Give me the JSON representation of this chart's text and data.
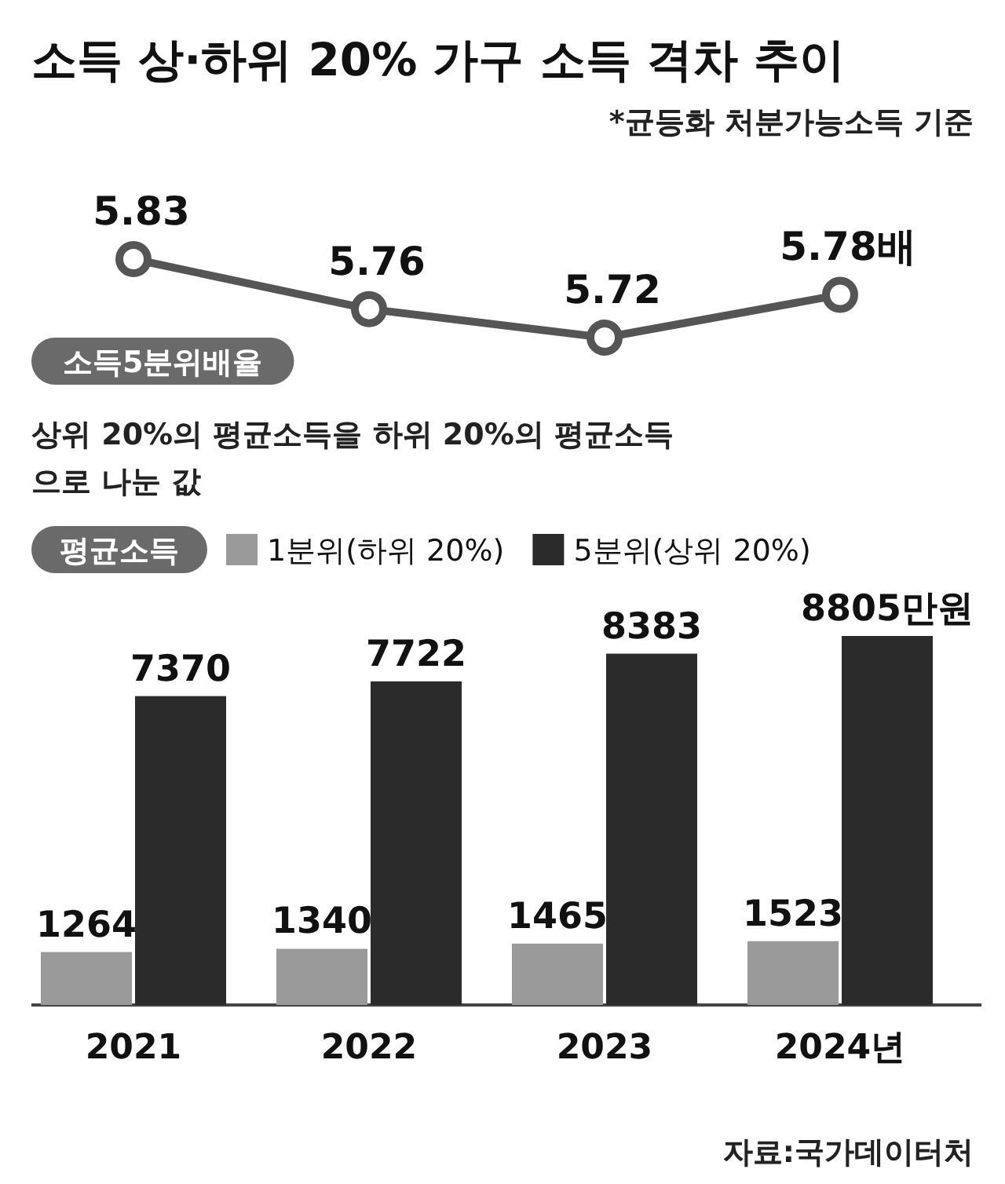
{
  "chart_data": [
    {
      "type": "line",
      "title": "소득 상·하위 20% 가구 소득 격차 추이",
      "subtitle": "*균등화 처분가능소득 기준",
      "series": [
        {
          "name": "소득5분위배율",
          "color": "#555555",
          "values": [
            5.83,
            5.76,
            5.72,
            5.78
          ],
          "value_labels": [
            "5.83",
            "5.76",
            "5.72",
            "5.78배"
          ]
        }
      ],
      "marker": "circle",
      "annotations": [
        "상위 20%의 평균소득을 하위 20%의 평균소득으로 나눈 값"
      ]
    },
    {
      "type": "bar",
      "categories": [
        "2021",
        "2022",
        "2023",
        "2024년"
      ],
      "legend_title": "평균소득",
      "legend": "top",
      "series": [
        {
          "name": "1분위(하위 20%)",
          "color": "#9a9a9a",
          "values": [
            1264,
            1340,
            1465,
            1523
          ],
          "value_labels": [
            "1264",
            "1340",
            "1465",
            "1523"
          ]
        },
        {
          "name": "5분위(상위 20%)",
          "color": "#2b2b2b",
          "values": [
            7370,
            7722,
            8383,
            8805
          ],
          "value_labels": [
            "7370",
            "7722",
            "8383",
            "8805만원"
          ]
        }
      ],
      "annotations": [
        "자료:국가데이터처"
      ]
    }
  ]
}
